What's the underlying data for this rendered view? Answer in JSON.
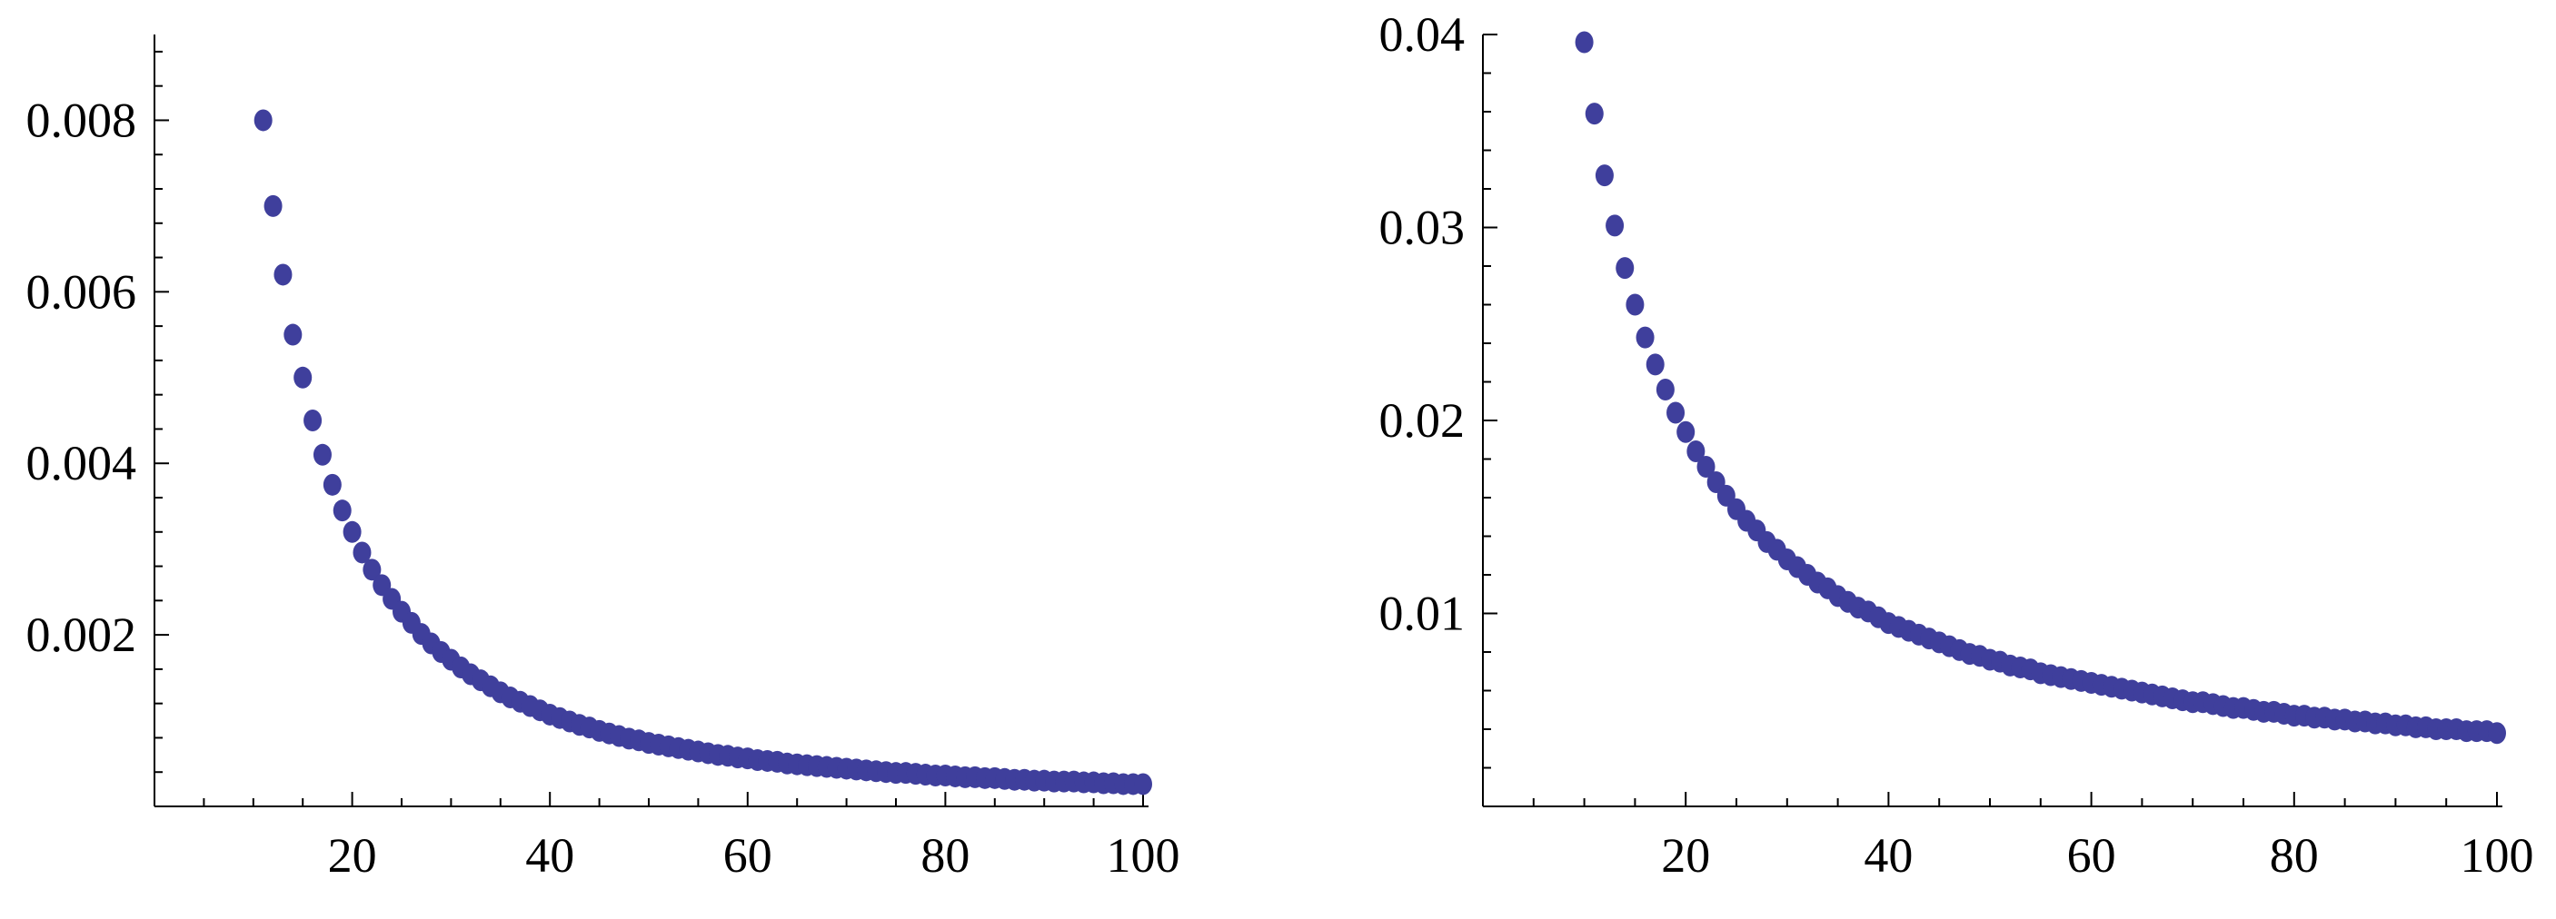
{
  "chart_data": [
    {
      "type": "scatter",
      "title": "",
      "xlabel": "",
      "ylabel": "",
      "x_range": [
        0,
        100
      ],
      "y_range": [
        0,
        0.009
      ],
      "x_ticks": [
        20,
        40,
        60,
        80,
        100
      ],
      "x_tick_labels": [
        "20",
        "40",
        "60",
        "80",
        "100"
      ],
      "y_ticks": [
        0.002,
        0.004,
        0.006,
        0.008
      ],
      "y_tick_labels": [
        "0.002",
        "0.004",
        "0.006",
        "0.008"
      ],
      "grid": false,
      "marker_color": "#3f3f9c",
      "series": [
        {
          "x": [
            11,
            12,
            13,
            14,
            15,
            16,
            17,
            18,
            19,
            20,
            21,
            22,
            23,
            24,
            25,
            26,
            27,
            28,
            29,
            30,
            31,
            32,
            33,
            34,
            35,
            36,
            37,
            38,
            39,
            40,
            41,
            42,
            43,
            44,
            45,
            46,
            47,
            48,
            49,
            50,
            51,
            52,
            53,
            54,
            55,
            56,
            57,
            58,
            59,
            60,
            61,
            62,
            63,
            64,
            65,
            66,
            67,
            68,
            69,
            70,
            71,
            72,
            73,
            74,
            75,
            76,
            77,
            78,
            79,
            80,
            81,
            82,
            83,
            84,
            85,
            86,
            87,
            88,
            89,
            90,
            91,
            92,
            93,
            94,
            95,
            96,
            97,
            98,
            99,
            100
          ],
          "y": [
            0.008,
            0.007,
            0.0062,
            0.0055,
            0.005,
            0.0045,
            0.0041,
            0.00375,
            0.00345,
            0.0032,
            0.00296,
            0.00276,
            0.00258,
            0.00242,
            0.00227,
            0.00214,
            0.00201,
            0.0019,
            0.0018,
            0.00171,
            0.00162,
            0.00154,
            0.00147,
            0.0014,
            0.00133,
            0.00127,
            0.00122,
            0.00117,
            0.00112,
            0.00107,
            0.00103,
            0.00099,
            0.00095,
            0.00092,
            0.00088,
            0.00085,
            0.00082,
            0.00079,
            0.00077,
            0.00074,
            0.00072,
            0.0007,
            0.00068,
            0.00066,
            0.00064,
            0.00062,
            0.0006,
            0.00059,
            0.00057,
            0.00056,
            0.00054,
            0.00053,
            0.00052,
            0.0005,
            0.00049,
            0.00048,
            0.00047,
            0.00046,
            0.00045,
            0.00044,
            0.00043,
            0.00042,
            0.00041,
            0.0004,
            0.00039,
            0.00039,
            0.00038,
            0.00037,
            0.00036,
            0.00036,
            0.00035,
            0.00034,
            0.00034,
            0.00033,
            0.00033,
            0.00032,
            0.00031,
            0.00031,
            0.0003,
            0.0003,
            0.00029,
            0.00029,
            0.00029,
            0.00028,
            0.00028,
            0.00027,
            0.00027,
            0.00026,
            0.00026,
            0.00026
          ]
        }
      ]
    },
    {
      "type": "scatter",
      "title": "",
      "xlabel": "",
      "ylabel": "",
      "x_range": [
        0,
        100
      ],
      "y_range": [
        0,
        0.04
      ],
      "x_ticks": [
        20,
        40,
        60,
        80,
        100
      ],
      "x_tick_labels": [
        "20",
        "40",
        "60",
        "80",
        "100"
      ],
      "y_ticks": [
        0.01,
        0.02,
        0.03,
        0.04
      ],
      "y_tick_labels": [
        "0.01",
        "0.02",
        "0.03",
        "0.04"
      ],
      "grid": false,
      "marker_color": "#3f3f9c",
      "series": [
        {
          "x": [
            10,
            11,
            12,
            13,
            14,
            15,
            16,
            17,
            18,
            19,
            20,
            21,
            22,
            23,
            24,
            25,
            26,
            27,
            28,
            29,
            30,
            31,
            32,
            33,
            34,
            35,
            36,
            37,
            38,
            39,
            40,
            41,
            42,
            43,
            44,
            45,
            46,
            47,
            48,
            49,
            50,
            51,
            52,
            53,
            54,
            55,
            56,
            57,
            58,
            59,
            60,
            61,
            62,
            63,
            64,
            65,
            66,
            67,
            68,
            69,
            70,
            71,
            72,
            73,
            74,
            75,
            76,
            77,
            78,
            79,
            80,
            81,
            82,
            83,
            84,
            85,
            86,
            87,
            88,
            89,
            90,
            91,
            92,
            93,
            94,
            95,
            96,
            97,
            98,
            99,
            100
          ],
          "y": [
            0.0396,
            0.0359,
            0.0327,
            0.0301,
            0.0279,
            0.026,
            0.0243,
            0.0229,
            0.0216,
            0.0204,
            0.0194,
            0.0184,
            0.0176,
            0.0168,
            0.0161,
            0.0154,
            0.0148,
            0.0143,
            0.0137,
            0.0133,
            0.0128,
            0.0124,
            0.012,
            0.0116,
            0.0113,
            0.0109,
            0.0106,
            0.0103,
            0.0101,
            0.0098,
            0.0095,
            0.0093,
            0.0091,
            0.0089,
            0.0087,
            0.0085,
            0.0083,
            0.0081,
            0.0079,
            0.0078,
            0.0076,
            0.0075,
            0.0073,
            0.0072,
            0.0071,
            0.0069,
            0.0068,
            0.0067,
            0.0066,
            0.0065,
            0.0064,
            0.0063,
            0.0062,
            0.0061,
            0.006,
            0.0059,
            0.0058,
            0.0057,
            0.0056,
            0.0055,
            0.0054,
            0.0054,
            0.0053,
            0.0052,
            0.0051,
            0.0051,
            0.005,
            0.0049,
            0.0049,
            0.0048,
            0.0047,
            0.0047,
            0.0046,
            0.0046,
            0.0045,
            0.0045,
            0.0044,
            0.0044,
            0.0043,
            0.0043,
            0.0042,
            0.0042,
            0.0041,
            0.0041,
            0.004,
            0.004,
            0.004,
            0.0039,
            0.0039,
            0.0039,
            0.0038
          ]
        }
      ]
    }
  ]
}
